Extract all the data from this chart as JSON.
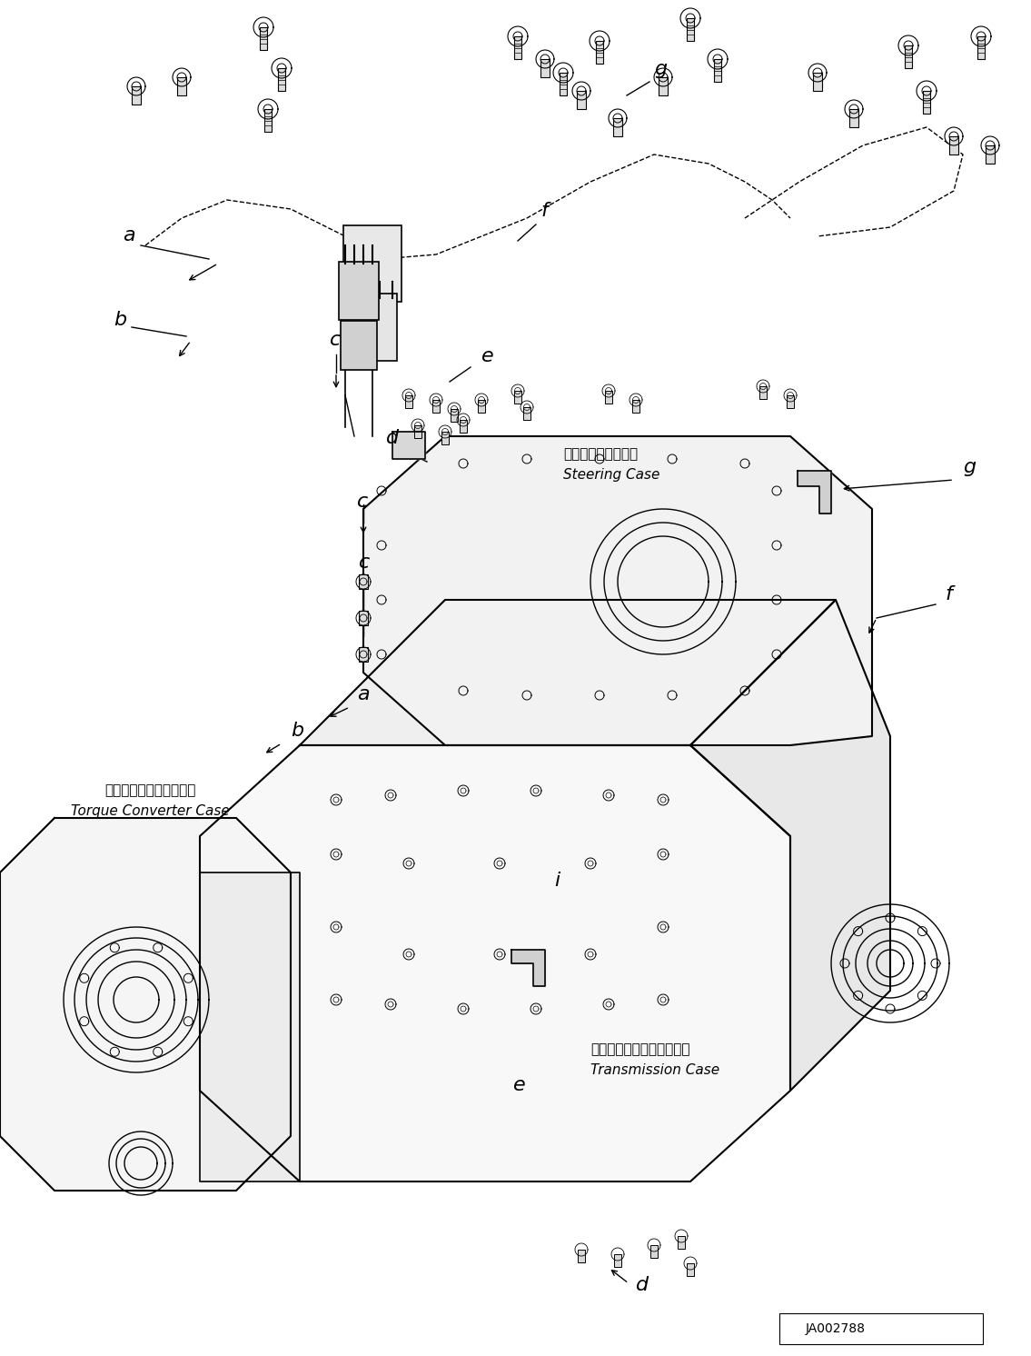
{
  "figure_width": 11.35,
  "figure_height": 14.92,
  "dpi": 100,
  "background_color": "#ffffff",
  "line_color": "#000000",
  "part_id": "JA002788",
  "labels": {
    "torque_converter_jp": "トルクコンバータケース",
    "torque_converter_en": "Torque Converter Case",
    "steering_case_jp": "ステアリングケース",
    "steering_case_en": "Steering Case",
    "transmission_jp": "トランスミッションケース",
    "transmission_en": "Transmission Case"
  },
  "callout_labels": [
    "a",
    "b",
    "c",
    "d",
    "e",
    "f",
    "g",
    "i"
  ],
  "title_color": "#000000"
}
